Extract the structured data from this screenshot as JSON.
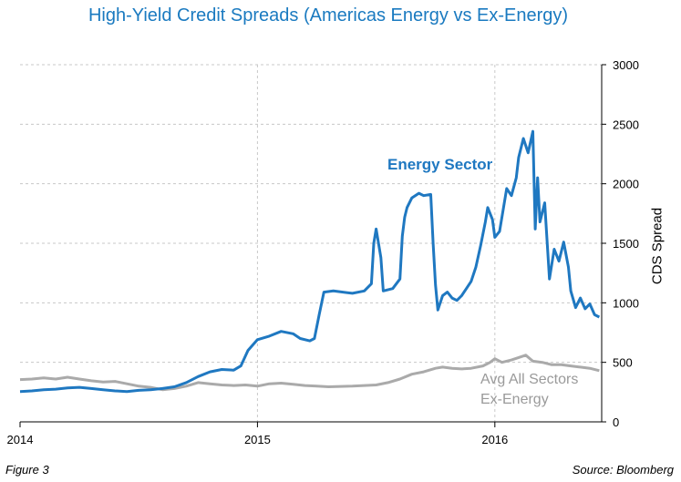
{
  "chart_data": {
    "type": "line",
    "title": "High-Yield Credit Spreads (Americas Energy vs Ex-Energy)",
    "ylabel": "CDS Spread",
    "xlim": [
      2014.0,
      2016.45
    ],
    "ylim": [
      0,
      3000
    ],
    "x_ticks": [
      "2014",
      "2015",
      "2016"
    ],
    "y_ticks": [
      "0",
      "500",
      "1000",
      "1500",
      "2000",
      "2500",
      "3000"
    ],
    "grid": true,
    "series": [
      {
        "name": "Energy Sector",
        "color": "#1f78c1",
        "points": [
          [
            2014.0,
            255
          ],
          [
            2014.05,
            260
          ],
          [
            2014.1,
            270
          ],
          [
            2014.15,
            275
          ],
          [
            2014.2,
            285
          ],
          [
            2014.25,
            290
          ],
          [
            2014.3,
            280
          ],
          [
            2014.35,
            270
          ],
          [
            2014.4,
            260
          ],
          [
            2014.45,
            255
          ],
          [
            2014.5,
            265
          ],
          [
            2014.55,
            270
          ],
          [
            2014.6,
            280
          ],
          [
            2014.65,
            295
          ],
          [
            2014.7,
            330
          ],
          [
            2014.75,
            380
          ],
          [
            2014.8,
            420
          ],
          [
            2014.85,
            440
          ],
          [
            2014.9,
            435
          ],
          [
            2014.93,
            470
          ],
          [
            2014.96,
            600
          ],
          [
            2015.0,
            690
          ],
          [
            2015.05,
            720
          ],
          [
            2015.1,
            760
          ],
          [
            2015.15,
            740
          ],
          [
            2015.18,
            700
          ],
          [
            2015.22,
            680
          ],
          [
            2015.24,
            700
          ],
          [
            2015.26,
            900
          ],
          [
            2015.28,
            1090
          ],
          [
            2015.32,
            1100
          ],
          [
            2015.4,
            1080
          ],
          [
            2015.45,
            1100
          ],
          [
            2015.48,
            1160
          ],
          [
            2015.49,
            1500
          ],
          [
            2015.5,
            1620
          ],
          [
            2015.52,
            1380
          ],
          [
            2015.53,
            1100
          ],
          [
            2015.57,
            1120
          ],
          [
            2015.6,
            1200
          ],
          [
            2015.61,
            1560
          ],
          [
            2015.62,
            1720
          ],
          [
            2015.63,
            1800
          ],
          [
            2015.65,
            1880
          ],
          [
            2015.68,
            1920
          ],
          [
            2015.7,
            1900
          ],
          [
            2015.73,
            1910
          ],
          [
            2015.74,
            1500
          ],
          [
            2015.75,
            1150
          ],
          [
            2015.76,
            940
          ],
          [
            2015.78,
            1060
          ],
          [
            2015.8,
            1090
          ],
          [
            2015.82,
            1040
          ],
          [
            2015.84,
            1020
          ],
          [
            2015.86,
            1060
          ],
          [
            2015.88,
            1120
          ],
          [
            2015.9,
            1180
          ],
          [
            2015.92,
            1300
          ],
          [
            2015.94,
            1480
          ],
          [
            2015.96,
            1680
          ],
          [
            2015.97,
            1800
          ],
          [
            2015.99,
            1700
          ],
          [
            2016.0,
            1550
          ],
          [
            2016.02,
            1600
          ],
          [
            2016.05,
            1960
          ],
          [
            2016.07,
            1900
          ],
          [
            2016.09,
            2050
          ],
          [
            2016.1,
            2220
          ],
          [
            2016.12,
            2380
          ],
          [
            2016.14,
            2260
          ],
          [
            2016.16,
            2440
          ],
          [
            2016.17,
            1620
          ],
          [
            2016.18,
            2050
          ],
          [
            2016.19,
            1680
          ],
          [
            2016.21,
            1840
          ],
          [
            2016.23,
            1200
          ],
          [
            2016.25,
            1450
          ],
          [
            2016.27,
            1350
          ],
          [
            2016.29,
            1510
          ],
          [
            2016.31,
            1300
          ],
          [
            2016.32,
            1100
          ],
          [
            2016.34,
            960
          ],
          [
            2016.36,
            1040
          ],
          [
            2016.38,
            950
          ],
          [
            2016.4,
            990
          ],
          [
            2016.42,
            900
          ],
          [
            2016.44,
            880
          ]
        ]
      },
      {
        "name": "Avg All Sectors Ex-Energy",
        "color": "#aaaaaa",
        "points": [
          [
            2014.0,
            355
          ],
          [
            2014.05,
            360
          ],
          [
            2014.1,
            370
          ],
          [
            2014.15,
            360
          ],
          [
            2014.2,
            375
          ],
          [
            2014.25,
            360
          ],
          [
            2014.3,
            345
          ],
          [
            2014.35,
            335
          ],
          [
            2014.4,
            340
          ],
          [
            2014.45,
            320
          ],
          [
            2014.5,
            300
          ],
          [
            2014.55,
            290
          ],
          [
            2014.6,
            270
          ],
          [
            2014.65,
            280
          ],
          [
            2014.7,
            300
          ],
          [
            2014.75,
            330
          ],
          [
            2014.8,
            320
          ],
          [
            2014.85,
            310
          ],
          [
            2014.9,
            305
          ],
          [
            2014.95,
            310
          ],
          [
            2015.0,
            300
          ],
          [
            2015.05,
            320
          ],
          [
            2015.1,
            325
          ],
          [
            2015.15,
            315
          ],
          [
            2015.2,
            305
          ],
          [
            2015.25,
            300
          ],
          [
            2015.3,
            295
          ],
          [
            2015.35,
            298
          ],
          [
            2015.4,
            300
          ],
          [
            2015.45,
            305
          ],
          [
            2015.5,
            310
          ],
          [
            2015.55,
            330
          ],
          [
            2015.6,
            360
          ],
          [
            2015.65,
            400
          ],
          [
            2015.7,
            420
          ],
          [
            2015.75,
            450
          ],
          [
            2015.78,
            460
          ],
          [
            2015.82,
            450
          ],
          [
            2015.86,
            445
          ],
          [
            2015.9,
            450
          ],
          [
            2015.95,
            470
          ],
          [
            2015.98,
            500
          ],
          [
            2016.0,
            530
          ],
          [
            2016.03,
            500
          ],
          [
            2016.07,
            520
          ],
          [
            2016.1,
            540
          ],
          [
            2016.13,
            560
          ],
          [
            2016.16,
            510
          ],
          [
            2016.2,
            500
          ],
          [
            2016.24,
            480
          ],
          [
            2016.28,
            480
          ],
          [
            2016.32,
            470
          ],
          [
            2016.36,
            460
          ],
          [
            2016.4,
            450
          ],
          [
            2016.44,
            430
          ]
        ]
      }
    ],
    "annotations": [
      {
        "text": "Energy Sector",
        "series": 0
      },
      {
        "text": "Avg All Sectors",
        "series": 1
      },
      {
        "text": "Ex-Energy",
        "series": 1
      }
    ]
  },
  "footer": {
    "figure_label": "Figure 3",
    "source": "Source: Bloomberg"
  }
}
